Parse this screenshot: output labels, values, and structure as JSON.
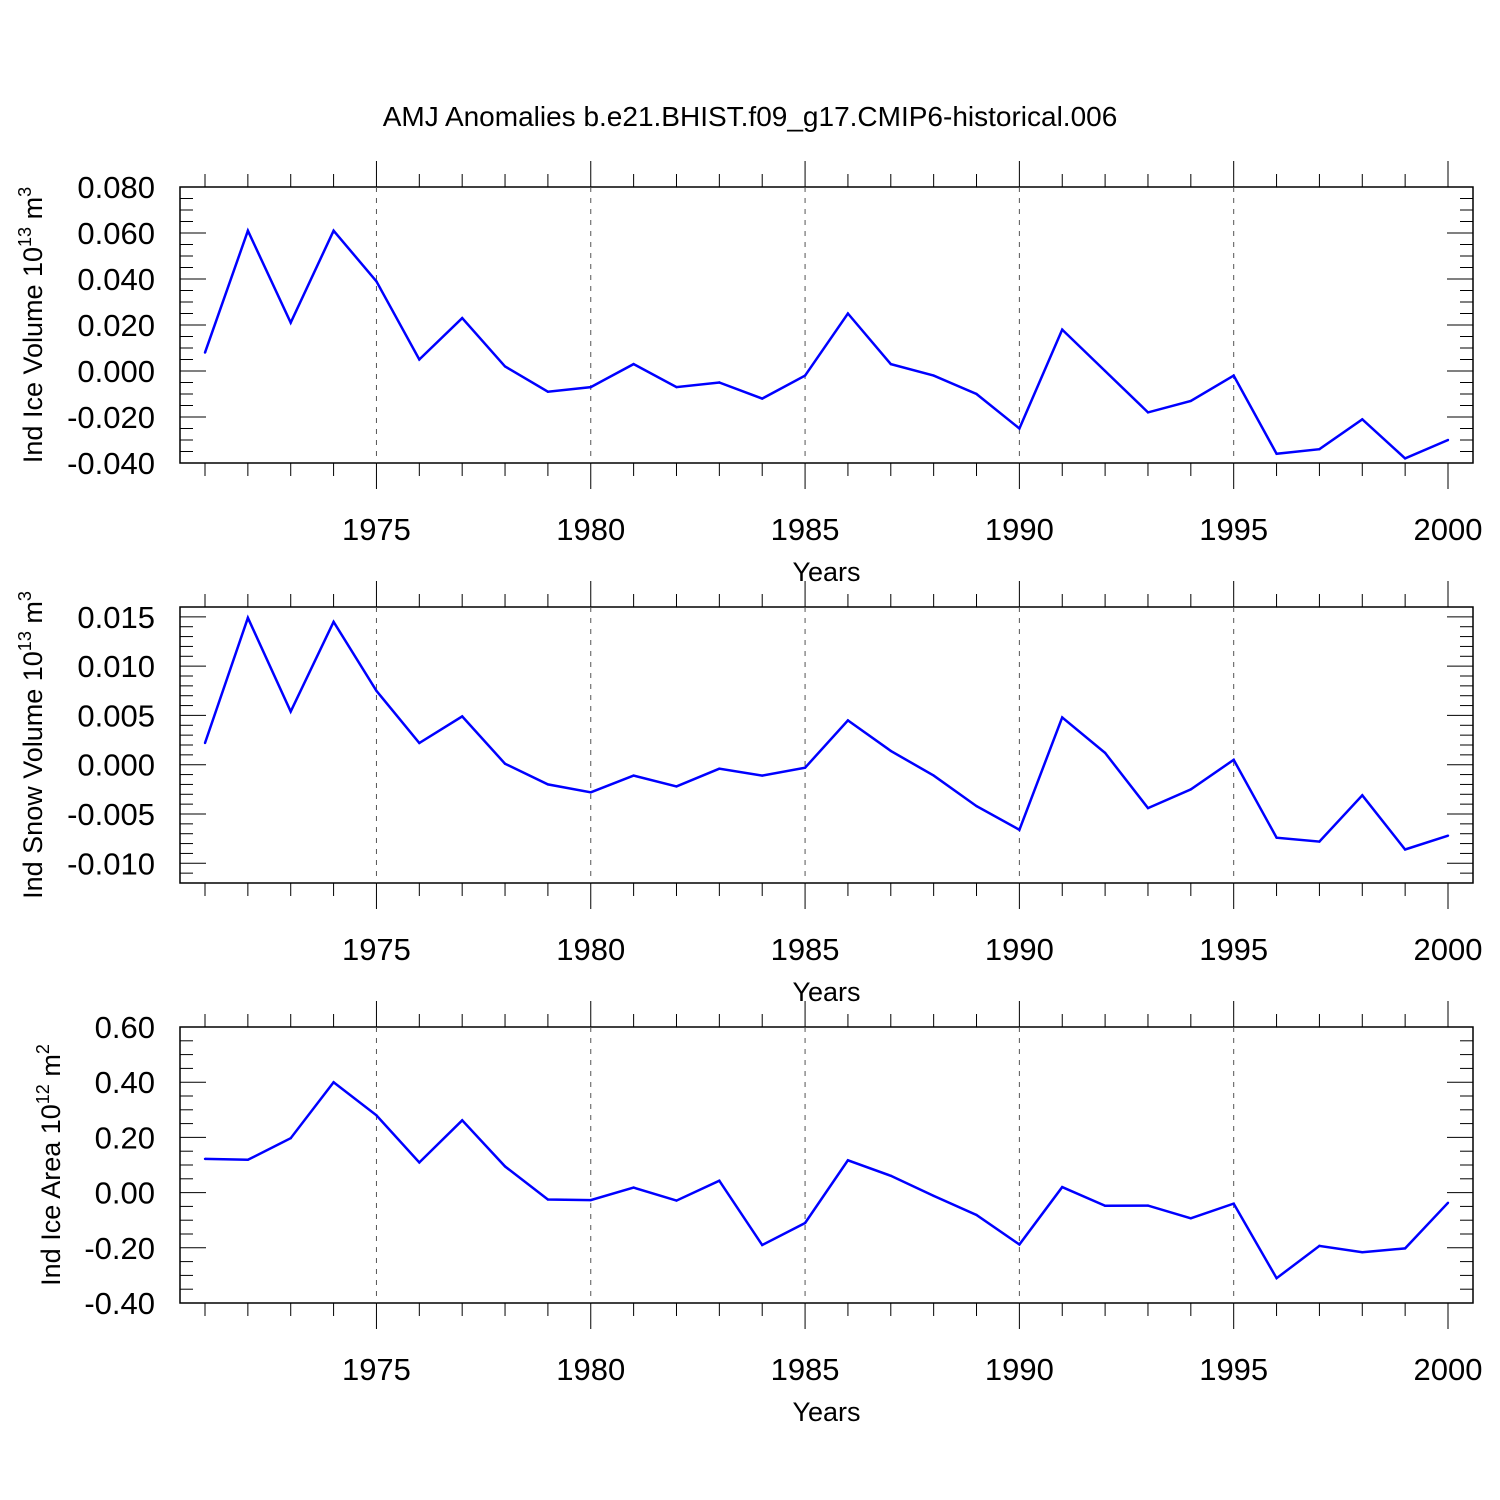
{
  "title": "AMJ Anomalies b.e21.BHIST.f09_g17.CMIP6-historical.006",
  "colors": {
    "series": "#0000ff",
    "axis": "#000000",
    "grid": "#555555"
  },
  "chart_data": [
    {
      "type": "line",
      "xlabel": "Years",
      "ylabel": {
        "text": "Ind Ice Volume 10",
        "exp": "13",
        "unit": " m",
        "unit_exp": "3"
      },
      "xlim": [
        1971,
        2000
      ],
      "ylim": [
        -0.04,
        0.08
      ],
      "x_ticks": [
        1975,
        1980,
        1985,
        1990,
        1995,
        2000
      ],
      "x_tick_labels": [
        "1975",
        "1980",
        "1985",
        "1990",
        "1995",
        "2000"
      ],
      "y_ticks": [
        -0.04,
        -0.02,
        0.0,
        0.02,
        0.04,
        0.06,
        0.08
      ],
      "y_tick_labels": [
        "-0.040",
        "-0.020",
        "0.000",
        "0.020",
        "0.040",
        "0.060",
        "0.080"
      ],
      "y_minor_step": 0.005,
      "grid": "vertical dashed at major x ticks",
      "x": [
        1971,
        1972,
        1973,
        1974,
        1975,
        1976,
        1977,
        1978,
        1979,
        1980,
        1981,
        1982,
        1983,
        1984,
        1985,
        1986,
        1987,
        1988,
        1989,
        1990,
        1991,
        1992,
        1993,
        1994,
        1995,
        1996,
        1997,
        1998,
        1999,
        2000
      ],
      "values": [
        0.008,
        0.061,
        0.021,
        0.061,
        0.039,
        0.005,
        0.023,
        0.002,
        -0.009,
        -0.007,
        0.003,
        -0.007,
        -0.005,
        -0.012,
        -0.002,
        0.025,
        0.003,
        -0.002,
        -0.01,
        -0.025,
        0.018,
        0.0,
        -0.018,
        -0.013,
        -0.002,
        -0.036,
        -0.034,
        -0.021,
        -0.038,
        -0.03
      ]
    },
    {
      "type": "line",
      "xlabel": "Years",
      "ylabel": {
        "text": "Ind Snow Volume 10",
        "exp": "13",
        "unit": " m",
        "unit_exp": "3"
      },
      "xlim": [
        1971,
        2000
      ],
      "ylim": [
        -0.012,
        0.016
      ],
      "x_ticks": [
        1975,
        1980,
        1985,
        1990,
        1995,
        2000
      ],
      "x_tick_labels": [
        "1975",
        "1980",
        "1985",
        "1990",
        "1995",
        "2000"
      ],
      "y_ticks": [
        -0.01,
        -0.005,
        0.0,
        0.005,
        0.01,
        0.015
      ],
      "y_tick_labels": [
        "-0.010",
        "-0.005",
        "0.000",
        "0.005",
        "0.010",
        "0.015"
      ],
      "y_minor_step": 0.001,
      "grid": "vertical dashed at major x ticks",
      "x": [
        1971,
        1972,
        1973,
        1974,
        1975,
        1976,
        1977,
        1978,
        1979,
        1980,
        1981,
        1982,
        1983,
        1984,
        1985,
        1986,
        1987,
        1988,
        1989,
        1990,
        1991,
        1992,
        1993,
        1994,
        1995,
        1996,
        1997,
        1998,
        1999,
        2000
      ],
      "values": [
        0.0022,
        0.0149,
        0.0054,
        0.0145,
        0.0075,
        0.0022,
        0.0049,
        0.0001,
        -0.002,
        -0.0028,
        -0.0011,
        -0.0022,
        -0.0004,
        -0.0011,
        -0.0003,
        0.0045,
        0.0014,
        -0.0011,
        -0.0042,
        -0.0066,
        0.0048,
        0.0012,
        -0.0044,
        -0.0025,
        0.0005,
        -0.0074,
        -0.0078,
        -0.0031,
        -0.0086,
        -0.0072
      ]
    },
    {
      "type": "line",
      "xlabel": "Years",
      "ylabel": {
        "text": "Ind Ice Area 10",
        "exp": "12",
        "unit": " m",
        "unit_exp": "2"
      },
      "xlim": [
        1971,
        2000
      ],
      "ylim": [
        -0.4,
        0.6
      ],
      "x_ticks": [
        1975,
        1980,
        1985,
        1990,
        1995,
        2000
      ],
      "x_tick_labels": [
        "1975",
        "1980",
        "1985",
        "1990",
        "1995",
        "2000"
      ],
      "y_ticks": [
        -0.4,
        -0.2,
        0.0,
        0.2,
        0.4,
        0.6
      ],
      "y_tick_labels": [
        "-0.40",
        "-0.20",
        "0.00",
        "0.20",
        "0.40",
        "0.60"
      ],
      "y_minor_step": 0.05,
      "grid": "vertical dashed at major x ticks",
      "x": [
        1971,
        1972,
        1973,
        1974,
        1975,
        1976,
        1977,
        1978,
        1979,
        1980,
        1981,
        1982,
        1983,
        1984,
        1985,
        1986,
        1987,
        1988,
        1989,
        1990,
        1991,
        1992,
        1993,
        1994,
        1995,
        1996,
        1997,
        1998,
        1999,
        2000
      ],
      "values": [
        0.122,
        0.119,
        0.197,
        0.4,
        0.28,
        0.109,
        0.262,
        0.095,
        -0.025,
        -0.027,
        0.018,
        -0.029,
        0.043,
        -0.19,
        -0.11,
        0.117,
        0.061,
        -0.012,
        -0.081,
        -0.188,
        0.02,
        -0.048,
        -0.047,
        -0.093,
        -0.04,
        -0.31,
        -0.193,
        -0.216,
        -0.202,
        -0.037
      ]
    }
  ]
}
